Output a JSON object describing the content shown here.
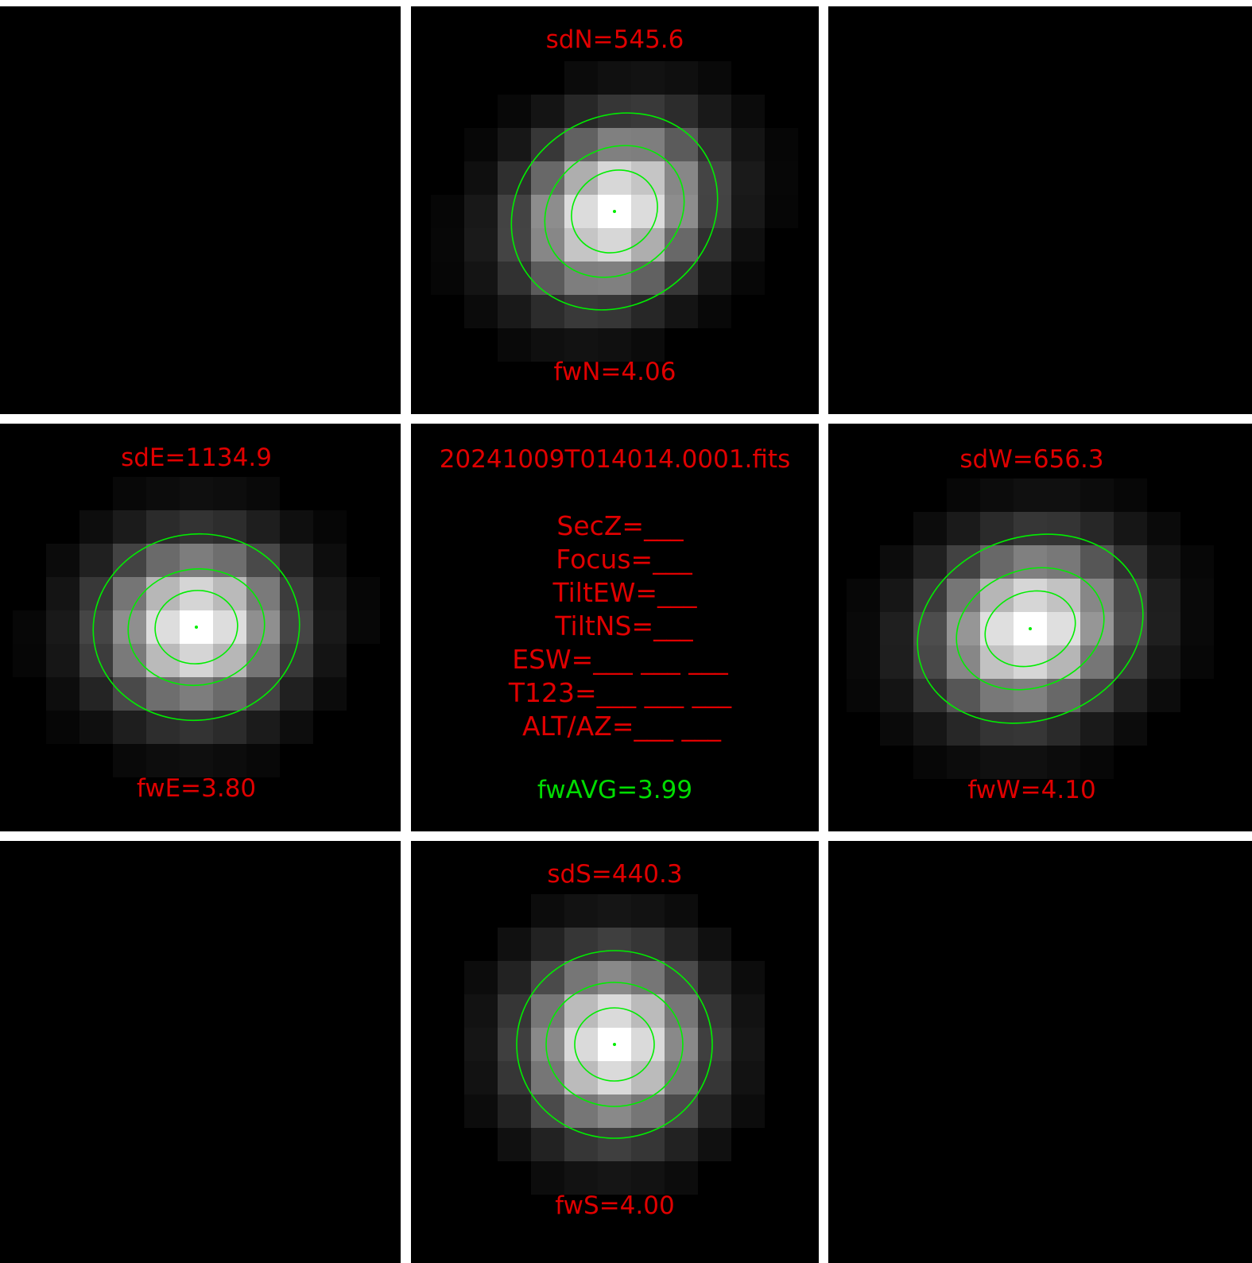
{
  "colors": {
    "label": "#e00000",
    "contour": "#00ee00",
    "average": "#00dd00",
    "separator": "#ffffff",
    "background": "#000000"
  },
  "panels": {
    "north": {
      "sd_label": "sdN=545.6",
      "fw_label": "fwN=4.06"
    },
    "east": {
      "sd_label": "sdE=1134.9",
      "fw_label": "fwE=3.80"
    },
    "west": {
      "sd_label": "sdW=656.3",
      "fw_label": "fwW=4.10"
    },
    "south": {
      "sd_label": "sdS=440.3",
      "fw_label": "fwS=4.00"
    },
    "center": {
      "filename": "20241009T014014.0001.fits",
      "fields": {
        "secz": "SecZ=___",
        "focus": "Focus=___",
        "tilt_ew": "TiltEW=___",
        "tilt_ns": "TiltNS=___",
        "esw": "ESW=___ ___ ___",
        "t123": "T123=___ ___ ___",
        "alt_az": "ALT/AZ=___ ___"
      },
      "fw_average": "fwAVG=3.99"
    }
  }
}
